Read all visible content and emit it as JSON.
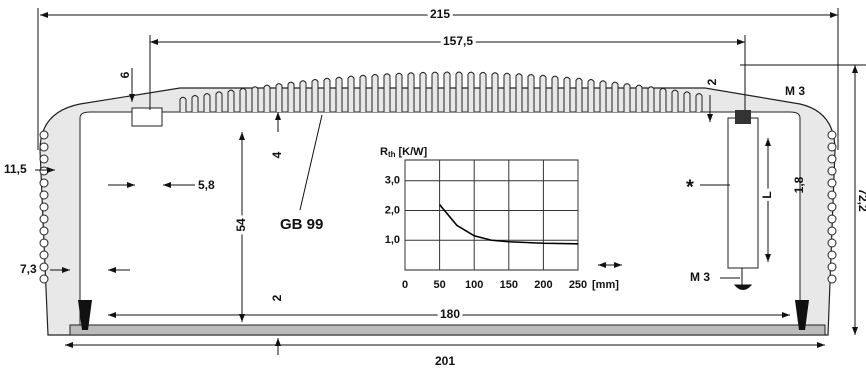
{
  "dimensions": {
    "overall_width": "215",
    "fin_width": "157,5",
    "top_thickness": "6",
    "right_gap": "2",
    "screw_top": "M 3",
    "side_depth": "11,5",
    "slot_width": "5,8",
    "fin_gap": "4",
    "inner_height": "54",
    "height": "72,2",
    "star": "*",
    "length": "L",
    "small_gap": "1,8",
    "side_wall": "7,3",
    "screw_bottom": "M 3",
    "bottom_gap": "2",
    "inner_width": "180",
    "base_width": "201"
  },
  "part_label": "GB 99",
  "chart": {
    "type": "line",
    "y_label": {
      "main": "R",
      "sub": "th",
      "unit": "[K/W]"
    },
    "x_unit": "[mm]",
    "x": [
      50,
      75,
      100,
      125,
      150,
      200,
      250
    ],
    "series": [
      {
        "color": "#000000",
        "values": [
          2.2,
          1.5,
          1.15,
          1.0,
          0.95,
          0.9,
          0.88
        ]
      }
    ],
    "xlim": [
      0,
      250
    ],
    "ylim": [
      0,
      3.7
    ],
    "xticks": [
      0,
      50,
      100,
      150,
      200,
      250
    ],
    "yticks": [
      {
        "value": 1,
        "label": "1,0"
      },
      {
        "value": 2,
        "label": "2,0"
      },
      {
        "value": 3,
        "label": "3,0"
      }
    ],
    "grid": true
  }
}
